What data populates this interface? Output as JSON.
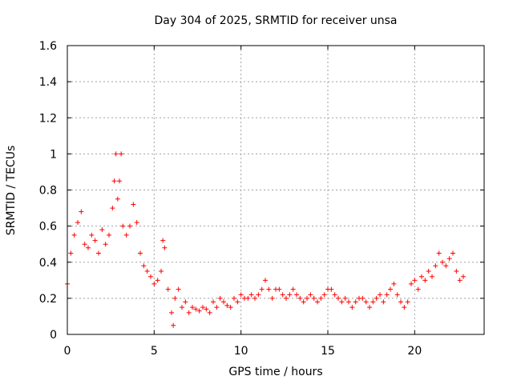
{
  "chart_data": {
    "type": "scatter",
    "title": "Day 304 of 2025, SRMTID for receiver unsa",
    "xlabel": "GPS time / hours",
    "ylabel": "SRMTID / TECUs",
    "xlim": [
      0,
      24
    ],
    "ylim": [
      0,
      1.6
    ],
    "xticks": [
      0,
      5,
      10,
      15,
      20
    ],
    "xtick_labels": [
      "0",
      "5",
      "10",
      "15",
      "20"
    ],
    "yticks": [
      0,
      0.2,
      0.4,
      0.6,
      0.8,
      1,
      1.2,
      1.4,
      1.6
    ],
    "ytick_labels": [
      "0",
      "0.2",
      "0.4",
      "0.6",
      "0.8",
      "1",
      "1.2",
      "1.4",
      "1.6"
    ],
    "grid": true,
    "marker": "+",
    "marker_color": "#ff0000",
    "series": [
      {
        "name": "SRMTID",
        "x": [
          0.0,
          0.2,
          0.4,
          0.6,
          0.8,
          1.0,
          1.2,
          1.4,
          1.6,
          1.8,
          2.0,
          2.2,
          2.4,
          2.6,
          2.7,
          2.8,
          2.9,
          3.0,
          3.1,
          3.2,
          3.4,
          3.6,
          3.8,
          4.0,
          4.2,
          4.4,
          4.6,
          4.8,
          5.0,
          5.2,
          5.4,
          5.5,
          5.6,
          5.8,
          6.0,
          6.1,
          6.2,
          6.4,
          6.6,
          6.8,
          7.0,
          7.2,
          7.4,
          7.6,
          7.8,
          8.0,
          8.2,
          8.4,
          8.6,
          8.8,
          9.0,
          9.2,
          9.4,
          9.6,
          9.8,
          10.0,
          10.2,
          10.4,
          10.6,
          10.8,
          11.0,
          11.2,
          11.4,
          11.6,
          11.8,
          12.0,
          12.2,
          12.4,
          12.6,
          12.8,
          13.0,
          13.2,
          13.4,
          13.6,
          13.8,
          14.0,
          14.2,
          14.4,
          14.6,
          14.8,
          15.0,
          15.2,
          15.4,
          15.6,
          15.8,
          16.0,
          16.2,
          16.4,
          16.6,
          16.8,
          17.0,
          17.2,
          17.4,
          17.6,
          17.8,
          18.0,
          18.2,
          18.4,
          18.6,
          18.8,
          19.0,
          19.2,
          19.4,
          19.6,
          19.8,
          20.0,
          20.2,
          20.4,
          20.6,
          20.8,
          21.0,
          21.2,
          21.4,
          21.6,
          21.8,
          22.0,
          22.2,
          22.4,
          22.6,
          22.8
        ],
        "values": [
          0.28,
          0.45,
          0.55,
          0.62,
          0.68,
          0.5,
          0.48,
          0.55,
          0.52,
          0.45,
          0.58,
          0.5,
          0.55,
          0.7,
          0.85,
          1.0,
          0.75,
          0.85,
          1.0,
          0.6,
          0.55,
          0.6,
          0.72,
          0.62,
          0.45,
          0.38,
          0.35,
          0.32,
          0.28,
          0.3,
          0.35,
          0.52,
          0.48,
          0.25,
          0.12,
          0.05,
          0.2,
          0.25,
          0.15,
          0.18,
          0.12,
          0.15,
          0.14,
          0.13,
          0.15,
          0.14,
          0.12,
          0.18,
          0.15,
          0.2,
          0.18,
          0.16,
          0.15,
          0.2,
          0.18,
          0.22,
          0.2,
          0.2,
          0.22,
          0.2,
          0.22,
          0.25,
          0.3,
          0.25,
          0.2,
          0.25,
          0.25,
          0.22,
          0.2,
          0.22,
          0.25,
          0.22,
          0.2,
          0.18,
          0.2,
          0.22,
          0.2,
          0.18,
          0.2,
          0.22,
          0.25,
          0.25,
          0.22,
          0.2,
          0.18,
          0.2,
          0.18,
          0.15,
          0.18,
          0.2,
          0.2,
          0.18,
          0.15,
          0.18,
          0.2,
          0.22,
          0.18,
          0.22,
          0.25,
          0.28,
          0.22,
          0.18,
          0.15,
          0.18,
          0.28,
          0.3,
          0.25,
          0.32,
          0.3,
          0.35,
          0.32,
          0.38,
          0.45,
          0.4,
          0.38,
          0.42,
          0.45,
          0.35,
          0.3,
          0.32
        ]
      }
    ]
  }
}
